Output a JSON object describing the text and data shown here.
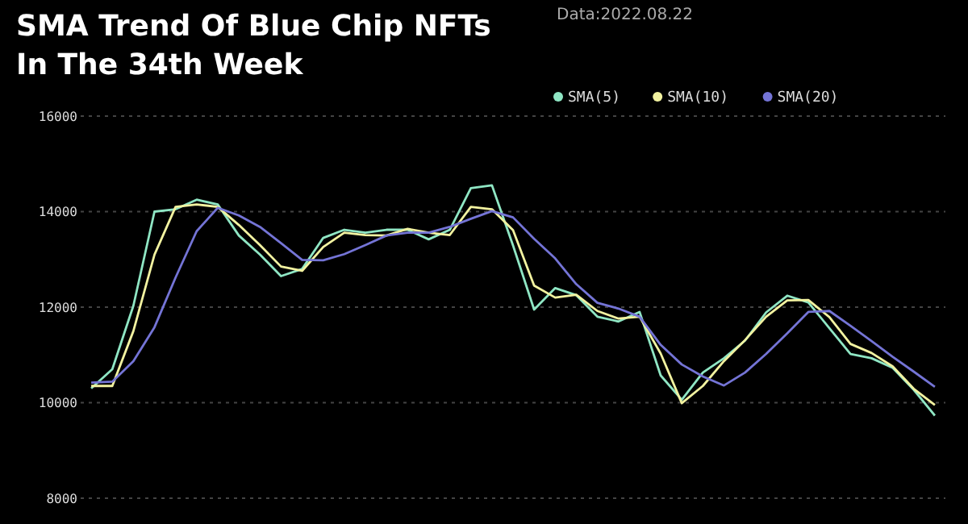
{
  "chart_data": {
    "type": "line",
    "title": "SMA Trend Of Blue Chip NFTs In The 34th Week",
    "annotations": [
      "Data:2022.08.22"
    ],
    "categories": [
      null,
      null,
      null,
      null,
      null,
      null,
      null,
      null,
      null,
      null,
      null,
      null,
      null,
      null,
      null,
      null,
      null,
      null,
      null,
      null,
      null,
      null,
      null,
      null,
      null,
      null,
      null,
      null,
      null,
      null,
      null,
      null,
      null,
      null,
      null,
      null,
      null,
      null,
      null,
      null,
      null
    ],
    "ylim": [
      8000,
      16000
    ],
    "yticks": [
      8000,
      10000,
      12000,
      14000,
      16000
    ],
    "tick_labels": "y",
    "grid": "y",
    "legend": "top right",
    "marker": "none",
    "line_style": "solid",
    "series": [
      {
        "name": "SMA(5)",
        "color": "#8fe6c4",
        "values": [
          10300,
          10700,
          12030,
          14000,
          14050,
          14250,
          14150,
          13500,
          13100,
          12650,
          12800,
          13450,
          13620,
          13560,
          13620,
          13620,
          13420,
          13620,
          14490,
          14550,
          13290,
          11950,
          12400,
          12250,
          11800,
          11700,
          11900,
          10570,
          10060,
          10630,
          10930,
          11300,
          11890,
          12240,
          12100,
          11560,
          11020,
          10930,
          10730,
          10270,
          9730
        ]
      },
      {
        "name": "SMA(10)",
        "color": "#f2f2a0",
        "values": [
          10350,
          10350,
          11500,
          13100,
          14100,
          14150,
          14100,
          13720,
          13300,
          12850,
          12760,
          13260,
          13560,
          13510,
          13500,
          13640,
          13560,
          13510,
          14100,
          14050,
          13610,
          12450,
          12200,
          12260,
          11920,
          11760,
          11800,
          11030,
          9990,
          10350,
          10870,
          11310,
          11800,
          12140,
          12150,
          11790,
          11230,
          11040,
          10760,
          10290,
          9950
        ]
      },
      {
        "name": "SMA(20)",
        "color": "#7474d6",
        "values": [
          10420,
          10440,
          10870,
          11580,
          12620,
          13590,
          14080,
          13920,
          13680,
          13340,
          12990,
          12980,
          13110,
          13300,
          13500,
          13560,
          13560,
          13680,
          13850,
          14010,
          13880,
          13430,
          13020,
          12480,
          12090,
          11970,
          11800,
          11210,
          10800,
          10550,
          10360,
          10630,
          11020,
          11450,
          11900,
          11920,
          11610,
          11290,
          10960,
          10650,
          10330
        ]
      }
    ]
  }
}
